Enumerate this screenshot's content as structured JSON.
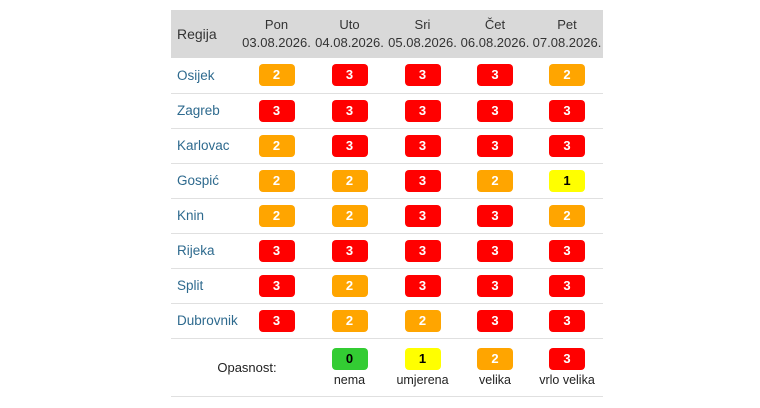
{
  "table": {
    "region_header": "Regija",
    "days": [
      {
        "name": "Pon",
        "date": "03.08.2026."
      },
      {
        "name": "Uto",
        "date": "04.08.2026."
      },
      {
        "name": "Sri",
        "date": "05.08.2026."
      },
      {
        "name": "Čet",
        "date": "06.08.2026."
      },
      {
        "name": "Pet",
        "date": "07.08.2026."
      }
    ],
    "rows": [
      {
        "region": "Osijek",
        "levels": [
          "2",
          "3",
          "3",
          "3",
          "2"
        ]
      },
      {
        "region": "Zagreb",
        "levels": [
          "3",
          "3",
          "3",
          "3",
          "3"
        ]
      },
      {
        "region": "Karlovac",
        "levels": [
          "2",
          "3",
          "3",
          "3",
          "3"
        ]
      },
      {
        "region": "Gospić",
        "levels": [
          "2",
          "2",
          "3",
          "2",
          "1"
        ]
      },
      {
        "region": "Knin",
        "levels": [
          "2",
          "2",
          "3",
          "3",
          "2"
        ]
      },
      {
        "region": "Rijeka",
        "levels": [
          "3",
          "3",
          "3",
          "3",
          "3"
        ]
      },
      {
        "region": "Split",
        "levels": [
          "3",
          "2",
          "3",
          "3",
          "3"
        ]
      },
      {
        "region": "Dubrovnik",
        "levels": [
          "3",
          "2",
          "2",
          "3",
          "3"
        ]
      }
    ]
  },
  "legend": {
    "title": "Opasnost:",
    "items": [
      {
        "level": "0",
        "label": "nema"
      },
      {
        "level": "1",
        "label": "umjerena"
      },
      {
        "level": "2",
        "label": "velika"
      },
      {
        "level": "3",
        "label": "vrlo velika"
      }
    ]
  },
  "colors": {
    "level_0": "#33cc33",
    "level_1": "#ffff00",
    "level_2": "#ffa500",
    "level_3": "#ff0000",
    "header_bg": "#d9d9d9",
    "region_link": "#2e6a8e"
  }
}
